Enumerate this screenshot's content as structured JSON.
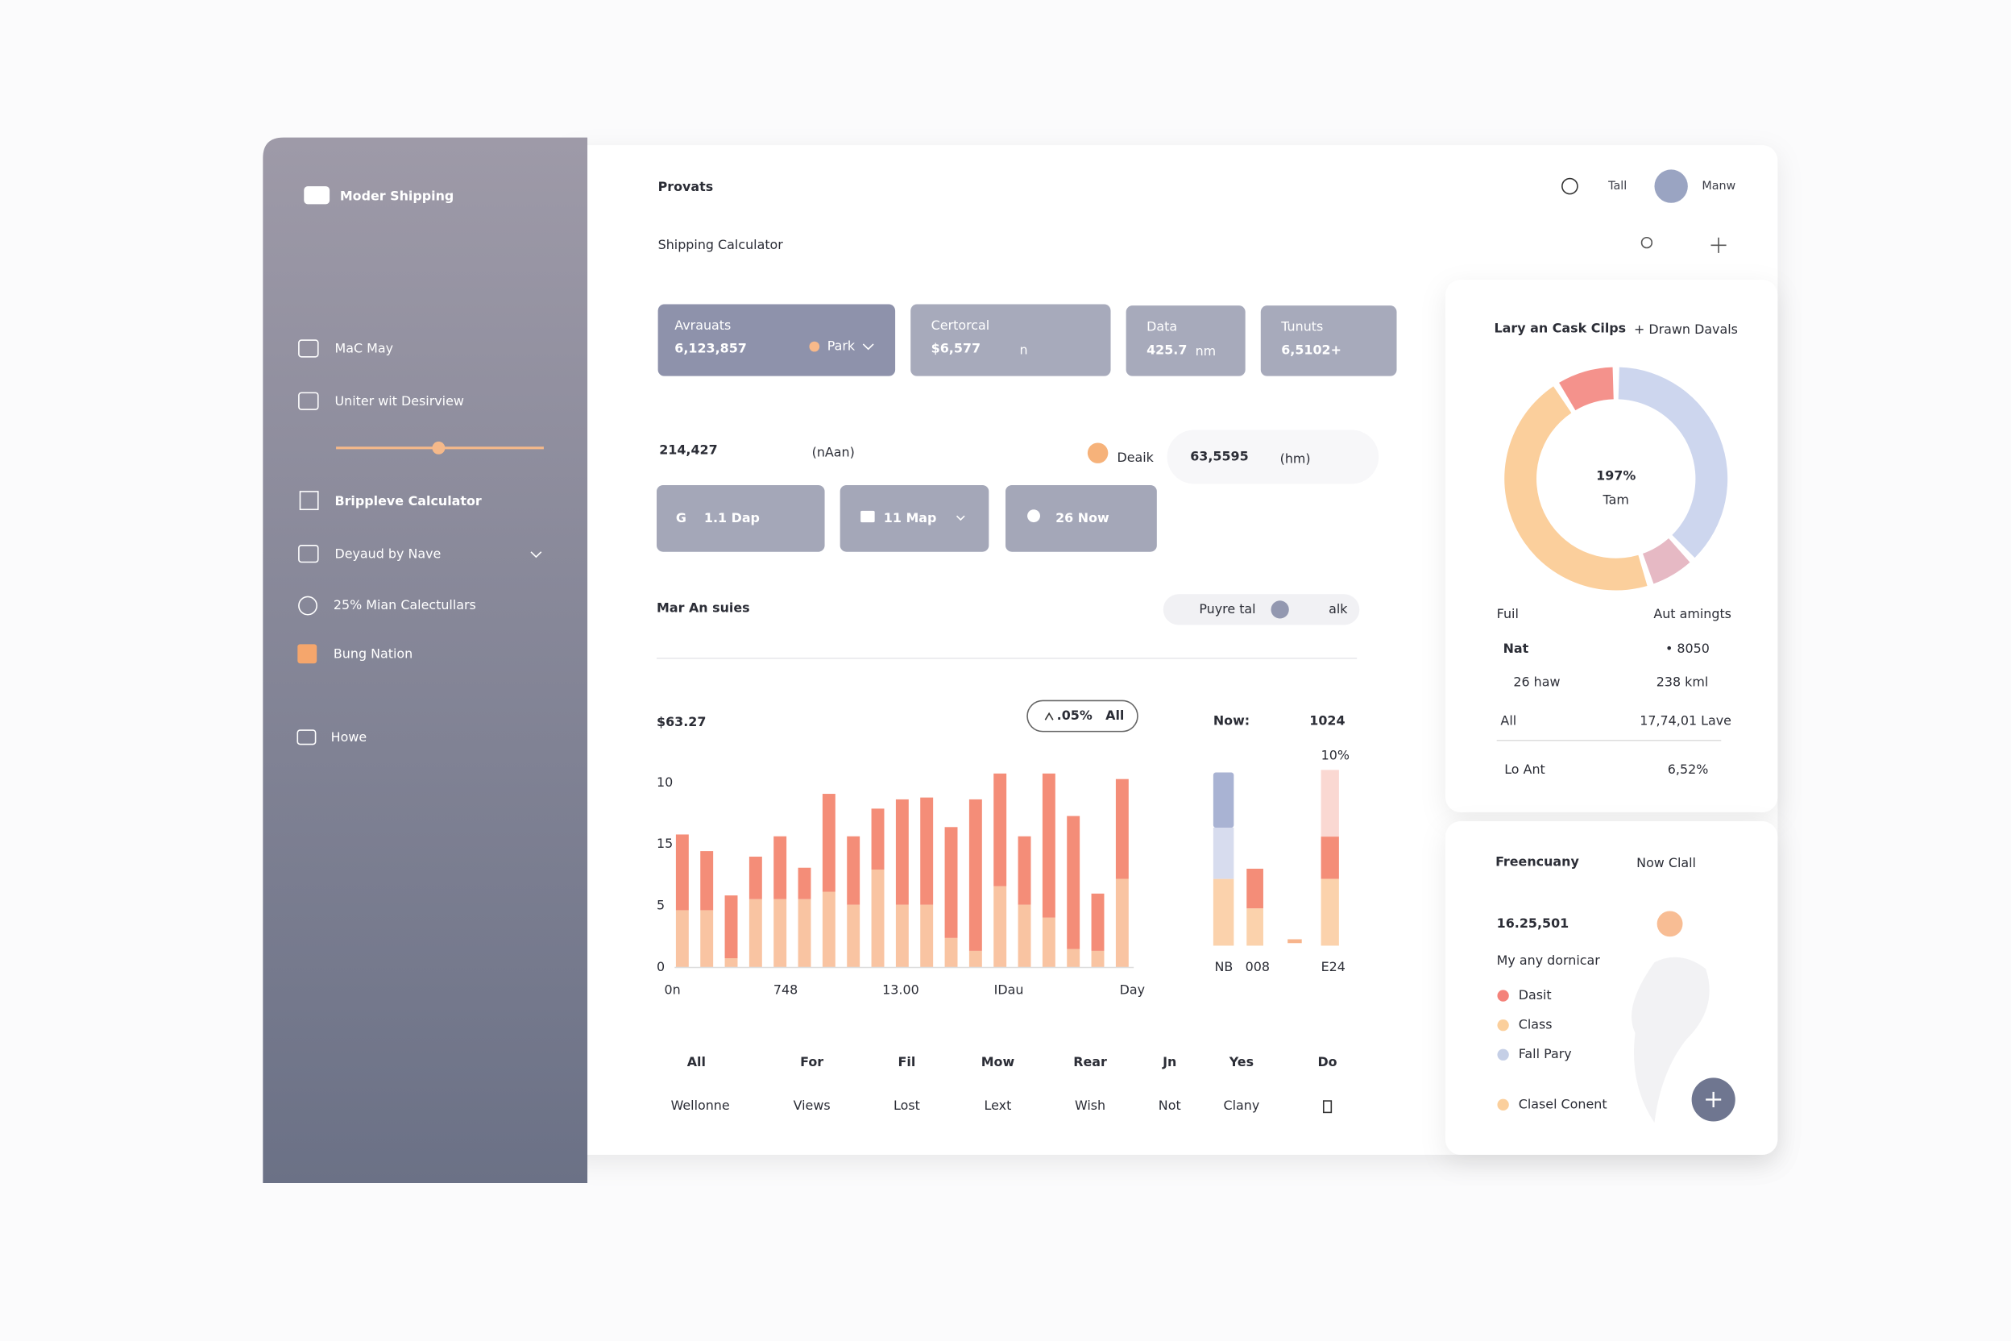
{
  "sidebar": {
    "brand": "Moder Shipping",
    "nav": [
      "MaC May",
      "Uniter wit Desirview",
      "Brippleve Calculator",
      "Deyaud by Nave",
      "25% Mian Calectullars",
      "Bung Nation",
      "Howe"
    ]
  },
  "header": {
    "title": "Provats",
    "subtitle": "Shipping Calculator",
    "top_right": [
      "Tall",
      "Manw"
    ]
  },
  "stat_cards": [
    {
      "label": "Avrauats",
      "value": "6,123,857",
      "tag": "Park"
    },
    {
      "label": "Certorcal",
      "value": "$6,577",
      "unit": "n"
    },
    {
      "label": "Data",
      "value": "425.7",
      "unit": "nm"
    },
    {
      "label": "Tunuts",
      "value": "6,5102+"
    }
  ],
  "summary": {
    "value": "214,427",
    "unit": "(nAan)",
    "badge": "Deaik",
    "pill_value": "63,5595",
    "pill_unit": "(hm)"
  },
  "buttons": [
    "1.1 Dap",
    "11 Map",
    "26 Now"
  ],
  "section": {
    "title": "Mar An suies",
    "filters": [
      "Puyre tal",
      "alk"
    ]
  },
  "chart": {
    "type": "bar",
    "headline": "$63.27",
    "change": ".05%",
    "scope": "All",
    "ylim": [
      0,
      10
    ],
    "y_labels": [
      "10",
      "15",
      "5",
      "0"
    ],
    "x_labels": [
      "0n",
      "748",
      "13.00",
      "IDau",
      "Day"
    ],
    "series": [
      {
        "name": "base",
        "color": "#f9c4a2",
        "values": [
          3.1,
          3.1,
          0.5,
          3.7,
          3.7,
          3.7,
          4.1,
          3.4,
          5.3,
          3.4,
          3.4,
          1.6,
          0.9,
          4.4,
          3.4,
          2.7,
          1.0,
          0.9,
          4.8
        ]
      },
      {
        "name": "top",
        "color": "#f48d78",
        "values": [
          4.1,
          3.2,
          3.4,
          2.3,
          3.4,
          1.7,
          5.3,
          3.7,
          3.3,
          5.7,
          5.8,
          6.0,
          8.2,
          6.1,
          3.7,
          7.8,
          7.2,
          3.1,
          5.4
        ]
      }
    ],
    "side": {
      "label": "Now:",
      "value": "1024",
      "percent": "10%",
      "x_labels": [
        "NB",
        "008",
        "E24"
      ]
    }
  },
  "table": {
    "headers": [
      "All",
      "For",
      "Fil",
      "Mow",
      "Rear",
      "Jn",
      "Yes",
      "Do"
    ],
    "row": [
      "Wellonne",
      "Views",
      "Lost",
      "Lext",
      "Wish",
      "Not",
      "Clany"
    ]
  },
  "donut_card": {
    "title": "Lary an Cask Cilps",
    "subtitle": "+ Drawn Davals",
    "center_value": "197%",
    "center_label": "Tam",
    "segments": [
      {
        "color": "#cdd6ee",
        "value": 38
      },
      {
        "color": "#e6b9c4",
        "value": 7
      },
      {
        "color": "#fbcf9c",
        "value": 46
      },
      {
        "color": "#f4928c",
        "value": 9
      }
    ],
    "rows": [
      [
        "Fuil",
        "Aut amingts"
      ],
      [
        "Nat",
        "• 8050"
      ],
      [
        "26 haw",
        "238 kml"
      ],
      [
        "All",
        "17,74,01 Lave"
      ],
      [
        "Lo Ant",
        "6,52%"
      ]
    ]
  },
  "freq_card": {
    "title": "Freencuany",
    "link": "Now Clall",
    "value": "16.25,501",
    "caption": "My any dornicar",
    "legend": [
      {
        "name": "Dasit",
        "color": "#f4827a"
      },
      {
        "name": "Class",
        "color": "#fbcf9c"
      },
      {
        "name": "Fall Pary",
        "color": "#c5cfe6"
      },
      {
        "name": "Clasel Conent",
        "color": "#fbcf9c"
      }
    ]
  }
}
